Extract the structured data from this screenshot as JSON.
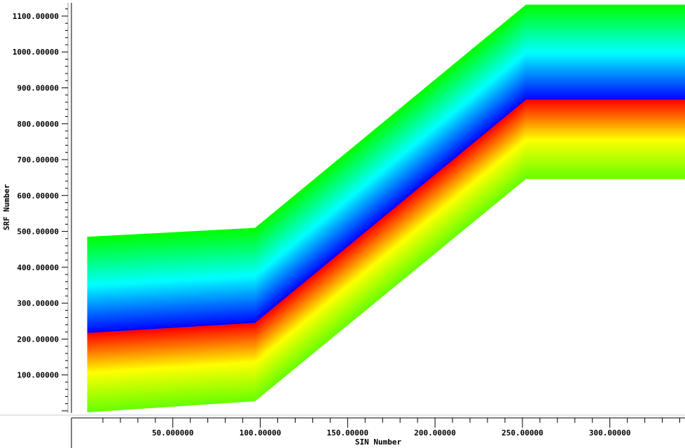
{
  "chart_data": {
    "type": "area",
    "title": "",
    "xlabel": "SIN Number",
    "ylabel": "SRF Number",
    "xlim": [
      -8,
      343
    ],
    "ylim": [
      -6,
      1137
    ],
    "x_ticks": [
      {
        "value": 50,
        "label": "50.000000"
      },
      {
        "value": 100,
        "label": "100.00000"
      },
      {
        "value": 150,
        "label": "150.00000"
      },
      {
        "value": 200,
        "label": "200.00000"
      },
      {
        "value": 250,
        "label": "250.00000"
      },
      {
        "value": 300,
        "label": "300.00000"
      }
    ],
    "y_ticks": [
      {
        "value": 100,
        "label": "100.00000"
      },
      {
        "value": 200,
        "label": "200.00000"
      },
      {
        "value": 300,
        "label": "300.00000"
      },
      {
        "value": 400,
        "label": "400.00000"
      },
      {
        "value": 500,
        "label": "500.00000"
      },
      {
        "value": 600,
        "label": "600.00000"
      },
      {
        "value": 700,
        "label": "700.00000"
      },
      {
        "value": 800,
        "label": "800.00000"
      },
      {
        "value": 900,
        "label": "900.00000"
      },
      {
        "value": 1000,
        "label": "1000.00000"
      },
      {
        "value": 1100,
        "label": "1100.00000"
      }
    ],
    "series": [
      {
        "band": "upper",
        "color_from": "#0000ff",
        "color_mid": "#00ffff",
        "color_to": "#00ff00",
        "x": [
          1,
          97,
          252,
          343
        ],
        "y_lower": [
          217,
          245,
          867,
          867
        ],
        "y_upper": [
          485,
          510,
          1132,
          1132
        ]
      },
      {
        "band": "lower",
        "color_from": "#ff0000",
        "color_mid": "#ffff00",
        "color_to": "#66ff00",
        "x": [
          1,
          97,
          252,
          343
        ],
        "y_lower": [
          -3,
          28,
          647,
          647
        ],
        "y_upper": [
          217,
          245,
          867,
          867
        ]
      }
    ],
    "grid": false,
    "legend": "none"
  }
}
